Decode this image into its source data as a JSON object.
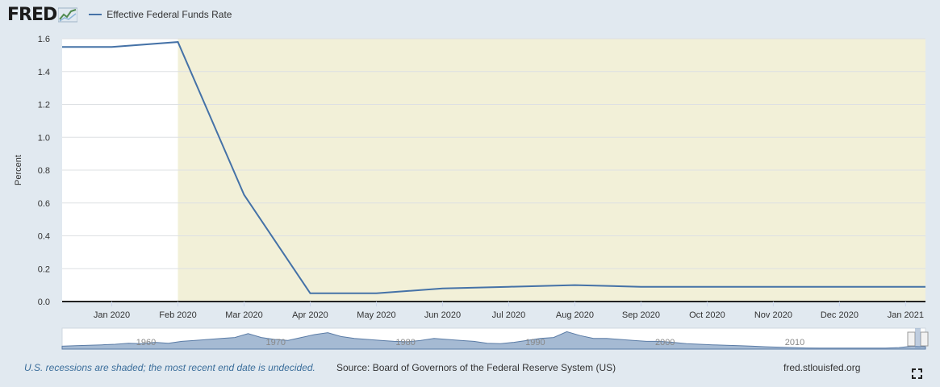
{
  "header": {
    "logo_text": "FRED",
    "logo_icon": "fred-graph-icon",
    "legend_label": "Effective Federal Funds Rate",
    "series_color": "#4572a7"
  },
  "chart_data": {
    "type": "line",
    "title": "Effective Federal Funds Rate",
    "ylabel": "Percent",
    "xlabel": "",
    "ylim": [
      0,
      1.6
    ],
    "yticks": [
      "0.0",
      "0.2",
      "0.4",
      "0.6",
      "0.8",
      "1.0",
      "1.2",
      "1.4",
      "1.6"
    ],
    "x_range": [
      "2019-12",
      "2021-01"
    ],
    "x_tick_labels": [
      "Jan 2020",
      "Feb 2020",
      "Mar 2020",
      "Apr 2020",
      "May 2020",
      "Jun 2020",
      "Jul 2020",
      "Aug 2020",
      "Sep 2020",
      "Oct 2020",
      "Nov 2020",
      "Dec 2020",
      "Jan 2021"
    ],
    "series": [
      {
        "name": "Effective Federal Funds Rate",
        "x": [
          -0.75,
          0,
          1,
          2,
          3,
          4,
          5,
          6,
          7,
          8,
          9,
          10,
          11,
          12,
          12.3
        ],
        "values": [
          1.55,
          1.55,
          1.58,
          0.65,
          0.05,
          0.05,
          0.08,
          0.09,
          0.1,
          0.09,
          0.09,
          0.09,
          0.09,
          0.09,
          0.09
        ]
      }
    ],
    "recession_start_x": 1,
    "recession_color": "#f2f0d8",
    "grid": true,
    "navigator_labels": [
      "1960",
      "1970",
      "1980",
      "1990",
      "2000",
      "2010"
    ]
  },
  "footer": {
    "recession_note": "U.S. recessions are shaded; the most recent end date is undecided.",
    "source": "Source: Board of Governors of the Federal Reserve System (US)",
    "site": "fred.stlouisfed.org"
  }
}
